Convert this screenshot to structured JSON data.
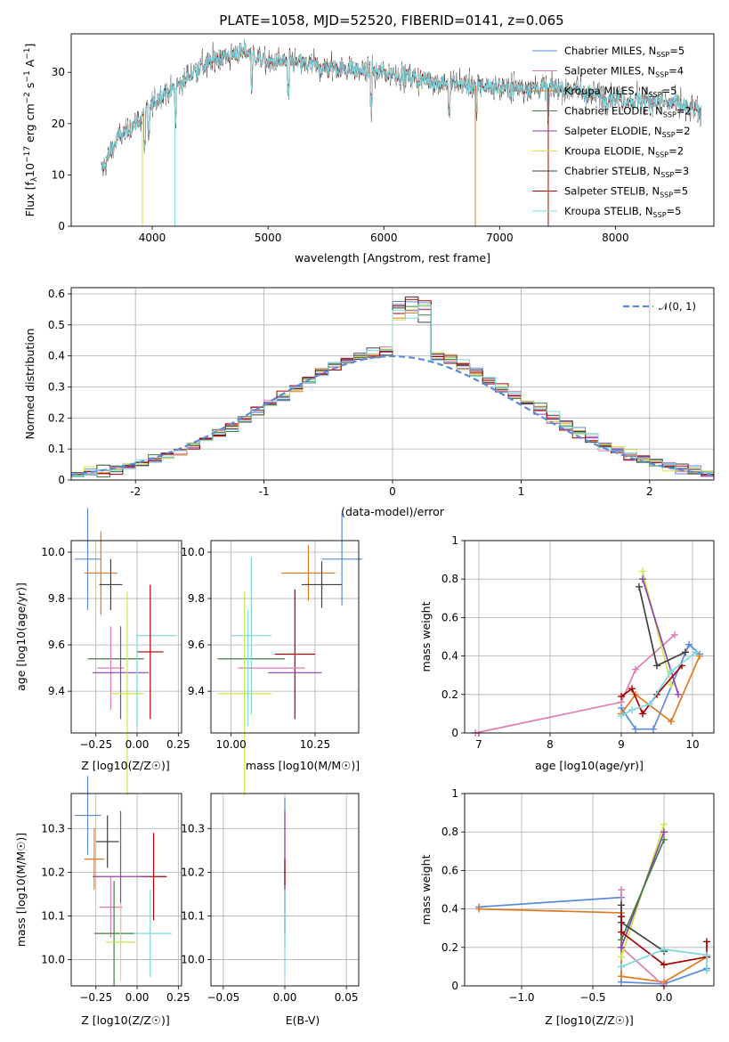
{
  "title": "PLATE=1058, MJD=52520, FIBERID=0141, z=0.065",
  "colors": {
    "Chabrier MILES": "#5b8bd8",
    "Salpeter MILES": "#e07bb4",
    "Kroupa MILES": "#e07a20",
    "Chabrier ELODIE": "#3f7f3f",
    "Salpeter ELODIE": "#9040b0",
    "Kroupa ELODIE": "#cce64d",
    "Chabrier STELIB": "#404040",
    "Salpeter STELIB": "#aa0000",
    "Kroupa STELIB": "#7ad8de"
  },
  "legend": [
    {
      "name": "Chabrier MILES",
      "label": "Chabrier MILES, N",
      "n": "5"
    },
    {
      "name": "Salpeter MILES",
      "label": "Salpeter MILES, N",
      "n": "4"
    },
    {
      "name": "Kroupa MILES",
      "label": "Kroupa MILES, N",
      "n": "5"
    },
    {
      "name": "Chabrier ELODIE",
      "label": "Chabrier ELODIE, N",
      "n": "2"
    },
    {
      "name": "Salpeter ELODIE",
      "label": "Salpeter ELODIE, N",
      "n": "2"
    },
    {
      "name": "Kroupa ELODIE",
      "label": "Kroupa ELODIE, N",
      "n": "2"
    },
    {
      "name": "Chabrier STELIB",
      "label": "Chabrier STELIB, N",
      "n": "3"
    },
    {
      "name": "Salpeter STELIB",
      "label": "Salpeter STELIB, N",
      "n": "5"
    },
    {
      "name": "Kroupa STELIB",
      "label": "Kroupa STELIB, N",
      "n": "5"
    }
  ],
  "legend_sub": "SSP",
  "chart_data": [
    {
      "id": "spectrum",
      "type": "line",
      "xlabel": "wavelength [Angstrom, rest frame]",
      "ylabel": "Flux [f_λ 10^-17 erg cm^-2 s^-1 A^-1]",
      "xlim": [
        3300,
        8850
      ],
      "ylim": [
        0,
        37.5
      ],
      "xticks": [
        4000,
        5000,
        6000,
        7000,
        8000
      ],
      "yticks": [
        0,
        10,
        20,
        30
      ],
      "continuum": [
        [
          3560,
          11
        ],
        [
          3700,
          17
        ],
        [
          3800,
          19
        ],
        [
          3900,
          21
        ],
        [
          4000,
          24
        ],
        [
          4100,
          26
        ],
        [
          4200,
          27
        ],
        [
          4400,
          31
        ],
        [
          4600,
          33
        ],
        [
          4800,
          34
        ],
        [
          5000,
          32
        ],
        [
          5200,
          32
        ],
        [
          5500,
          31
        ],
        [
          6000,
          30
        ],
        [
          6500,
          28
        ],
        [
          7000,
          27
        ],
        [
          7500,
          27
        ],
        [
          8000,
          25
        ],
        [
          8500,
          24
        ],
        [
          8740,
          22
        ]
      ],
      "dips": [
        3935,
        3970,
        4200,
        4860,
        5175,
        5890,
        6563,
        6800,
        7420
      ]
    },
    {
      "id": "residuals",
      "type": "histogram",
      "xlabel": "(data-model)/error",
      "ylabel": "Normed distribution",
      "xlim": [
        -2.5,
        2.5
      ],
      "ylim": [
        0,
        0.62
      ],
      "xticks": [
        -2,
        -1,
        0,
        1,
        2
      ],
      "yticks": [
        0,
        0.1,
        0.2,
        0.3,
        0.4,
        0.5,
        0.6
      ],
      "reference": "N(0,1)",
      "bin_width": 0.1
    },
    {
      "id": "age-vs-Z",
      "type": "scatter",
      "xlabel": "Z [log10(Z/Z☉)]",
      "ylabel": "age [log10(age/yr)]",
      "xlim": [
        -0.4,
        0.27
      ],
      "ylim": [
        9.22,
        10.05
      ],
      "xticks": [
        -0.25,
        0,
        0.25
      ],
      "xticklabels": [
        "−0.25",
        "0.00",
        "0.25"
      ],
      "yticks": [
        9.4,
        9.6,
        9.8,
        10.0
      ],
      "yticklabels": [
        "9.4",
        "9.6",
        "9.8",
        "10.0"
      ],
      "points": [
        {
          "series": "Chabrier MILES",
          "x": -0.3,
          "y": 9.97,
          "xerr": 0.08,
          "yerr": 0.22
        },
        {
          "series": "Kroupa MILES",
          "x": -0.22,
          "y": 9.91,
          "xerr": 0.1,
          "yerr": 0.18
        },
        {
          "series": "Chabrier STELIB",
          "x": -0.16,
          "y": 9.86,
          "xerr": 0.07,
          "yerr": 0.11
        },
        {
          "series": "Chabrier ELODIE",
          "x": -0.13,
          "y": 9.54,
          "xerr": 0.17,
          "yerr": 0.0
        },
        {
          "series": "Kroupa STELIB",
          "x": 0.12,
          "y": 9.64,
          "xerr": 0.12,
          "yerr": 0.0
        },
        {
          "series": "Salpeter STELIB",
          "x": 0.08,
          "y": 9.57,
          "xerr": 0.08,
          "yerr": 0.29
        },
        {
          "series": "Salpeter MILES",
          "x": -0.16,
          "y": 9.5,
          "xerr": 0.08,
          "yerr": 0.18
        },
        {
          "series": "Salpeter ELODIE",
          "x": -0.1,
          "y": 9.48,
          "xerr": 0.17,
          "yerr": 0.2
        },
        {
          "series": "Kroupa ELODIE",
          "x": -0.06,
          "y": 9.39,
          "xerr": 0.1,
          "yerr": 0.44
        },
        {
          "series": "Kroupa STELIB",
          "x": 0.0,
          "y": 9.45,
          "xerr": 0.0,
          "yerr": 0.2
        }
      ]
    },
    {
      "id": "age-vs-mass",
      "type": "scatter",
      "xlabel": "mass [log10(M/M☉)]",
      "ylabel": "",
      "xlim": [
        9.94,
        10.38
      ],
      "ylim": [
        9.22,
        10.05
      ],
      "xticks": [
        10.0,
        10.25
      ],
      "xticklabels": [
        "10.00",
        "10.25"
      ],
      "yticks": [
        9.4,
        9.6,
        9.8,
        10.0
      ],
      "yticklabels": [
        "9.4",
        "9.6",
        "9.8",
        "10.0"
      ],
      "points": [
        {
          "series": "Chabrier MILES",
          "x": 10.33,
          "y": 9.97,
          "xerr": 0.06,
          "yerr": 0.2
        },
        {
          "series": "Kroupa MILES",
          "x": 10.23,
          "y": 9.91,
          "xerr": 0.08,
          "yerr": 0.12
        },
        {
          "series": "Chabrier STELIB",
          "x": 10.27,
          "y": 9.86,
          "xerr": 0.06,
          "yerr": 0.1
        },
        {
          "series": "Chabrier ELODIE",
          "x": 10.06,
          "y": 9.54,
          "xerr": 0.1,
          "yerr": 0.0
        },
        {
          "series": "Kroupa STELIB",
          "x": 10.06,
          "y": 9.64,
          "xerr": 0.06,
          "yerr": 0.34
        },
        {
          "series": "Salpeter STELIB",
          "x": 10.19,
          "y": 9.56,
          "xerr": 0.06,
          "yerr": 0.28
        },
        {
          "series": "Salpeter MILES",
          "x": 10.12,
          "y": 9.5,
          "xerr": 0.1,
          "yerr": 0.0
        },
        {
          "series": "Salpeter ELODIE",
          "x": 10.19,
          "y": 9.48,
          "xerr": 0.08,
          "yerr": 0.0
        },
        {
          "series": "Kroupa ELODIE",
          "x": 10.04,
          "y": 9.39,
          "xerr": 0.08,
          "yerr": 0.44
        },
        {
          "series": "Kroupa STELIB",
          "x": 10.05,
          "y": 9.5,
          "xerr": 0.0,
          "yerr": 0.25
        }
      ]
    },
    {
      "id": "weight-vs-age",
      "type": "line",
      "xlabel": "age [log10(age/yr)]",
      "ylabel": "mass weight",
      "xlim": [
        6.8,
        10.3
      ],
      "ylim": [
        0,
        1.0
      ],
      "xticks": [
        7,
        8,
        9,
        10
      ],
      "yticks": [
        0,
        0.2,
        0.4,
        0.6,
        0.8,
        1.0
      ],
      "series": [
        {
          "name": "Salpeter MILES",
          "x": [
            6.95,
            9.0,
            9.2,
            9.75
          ],
          "y": [
            0.0,
            0.16,
            0.33,
            0.51
          ]
        },
        {
          "name": "Chabrier MILES",
          "x": [
            9.0,
            9.2,
            9.45,
            9.95,
            10.1
          ],
          "y": [
            0.13,
            0.02,
            0.02,
            0.46,
            0.41
          ]
        },
        {
          "name": "Kroupa MILES",
          "x": [
            9.0,
            9.2,
            9.7,
            10.1
          ],
          "y": [
            0.1,
            0.2,
            0.06,
            0.4
          ]
        },
        {
          "name": "Kroupa ELODIE",
          "x": [
            9.3,
            9.7
          ],
          "y": [
            0.84,
            0.25
          ]
        },
        {
          "name": "Salpeter ELODIE",
          "x": [
            9.3,
            9.8
          ],
          "y": [
            0.8,
            0.2
          ]
        },
        {
          "name": "Chabrier STELIB",
          "x": [
            9.25,
            9.5,
            9.9
          ],
          "y": [
            0.76,
            0.35,
            0.42
          ]
        },
        {
          "name": "Salpeter STELIB",
          "x": [
            9.0,
            9.15,
            9.3,
            9.5,
            9.85
          ],
          "y": [
            0.19,
            0.23,
            0.1,
            0.2,
            0.35
          ]
        },
        {
          "name": "Kroupa STELIB",
          "x": [
            9.0,
            9.15,
            9.4,
            9.7,
            10.05
          ],
          "y": [
            0.09,
            0.12,
            0.15,
            0.32,
            0.42
          ]
        }
      ]
    },
    {
      "id": "mass-vs-Z",
      "type": "scatter",
      "xlabel": "Z [log10(Z/Z☉)]",
      "ylabel": "mass [log10(M/M☉)]",
      "xlim": [
        -0.4,
        0.27
      ],
      "ylim": [
        9.94,
        10.38
      ],
      "xticks": [
        -0.25,
        0,
        0.25
      ],
      "xticklabels": [
        "−0.25",
        "0.00",
        "0.25"
      ],
      "yticks": [
        10.0,
        10.1,
        10.2,
        10.3
      ],
      "yticklabels": [
        "10.0",
        "10.1",
        "10.2",
        "10.3"
      ],
      "points": [
        {
          "series": "Chabrier MILES",
          "x": -0.3,
          "y": 10.33,
          "xerr": 0.08,
          "yerr": 0.09
        },
        {
          "series": "Chabrier STELIB",
          "x": -0.18,
          "y": 10.27,
          "xerr": 0.07,
          "yerr": 0.06
        },
        {
          "series": "Kroupa MILES",
          "x": -0.26,
          "y": 10.23,
          "xerr": 0.06,
          "yerr": 0.07
        },
        {
          "series": "Salpeter MILES",
          "x": -0.16,
          "y": 10.12,
          "xerr": 0.07,
          "yerr": 0.07
        },
        {
          "series": "Salpeter STELIB",
          "x": 0.1,
          "y": 10.19,
          "xerr": 0.08,
          "yerr": 0.1
        },
        {
          "series": "Salpeter ELODIE",
          "x": -0.1,
          "y": 10.19,
          "xerr": 0.17,
          "yerr": 0.15
        },
        {
          "series": "Kroupa STELIB",
          "x": 0.08,
          "y": 10.06,
          "xerr": 0.13,
          "yerr": 0.1
        },
        {
          "series": "Chabrier ELODIE",
          "x": -0.14,
          "y": 10.06,
          "xerr": 0.12,
          "yerr": 0.12
        },
        {
          "series": "Kroupa ELODIE",
          "x": -0.1,
          "y": 10.04,
          "xerr": 0.09,
          "yerr": 0.09
        }
      ]
    },
    {
      "id": "mass-vs-ebv",
      "type": "scatter",
      "xlabel": "E(B-V)",
      "ylabel": "",
      "xlim": [
        -0.06,
        0.06
      ],
      "ylim": [
        9.94,
        10.38
      ],
      "xticks": [
        -0.05,
        0,
        0.05
      ],
      "xticklabels": [
        "−0.05",
        "0.00",
        "0.05"
      ],
      "yticks": [
        10.0,
        10.1,
        10.2,
        10.3
      ],
      "yticklabels": [
        "10.0",
        "10.1",
        "10.2",
        "10.3"
      ],
      "points": [
        {
          "series": "Chabrier MILES",
          "x": 0.0,
          "y": 10.2,
          "xerr": 0,
          "yerr": 0.17
        },
        {
          "series": "Salpeter ELODIE",
          "x": 0.0,
          "y": 10.2,
          "xerr": 0,
          "yerr": 0.14
        },
        {
          "series": "Salpeter STELIB",
          "x": 0.0,
          "y": 10.2,
          "xerr": 0,
          "yerr": 0.03
        },
        {
          "series": "Kroupa STELIB",
          "x": 0.0,
          "y": 10.06,
          "xerr": 0,
          "yerr": 0.1
        }
      ]
    },
    {
      "id": "weight-vs-Z",
      "type": "line",
      "xlabel": "Z [log10(Z/Z☉)]",
      "ylabel": "mass weight",
      "xlim": [
        -1.4,
        0.35
      ],
      "ylim": [
        0,
        1.0
      ],
      "xticks": [
        -1.0,
        -0.5,
        0.0
      ],
      "xticklabels": [
        "−1.0",
        "−0.5",
        "0.0"
      ],
      "yticks": [
        0,
        0.2,
        0.4,
        0.6,
        0.8,
        1.0
      ],
      "series": [
        {
          "name": "Chabrier MILES",
          "x": [
            -1.3,
            -0.3,
            -0.3,
            0.0,
            0.3
          ],
          "y": [
            0.41,
            0.46,
            0.02,
            0.01,
            0.09
          ]
        },
        {
          "name": "Kroupa MILES",
          "x": [
            -1.3,
            -0.3,
            -0.3,
            0.0,
            0.3
          ],
          "y": [
            0.4,
            0.38,
            0.05,
            0.02,
            0.15
          ]
        },
        {
          "name": "Salpeter MILES",
          "x": [
            -0.3,
            -0.3,
            0.0
          ],
          "y": [
            0.5,
            0.2,
            0.0
          ]
        },
        {
          "name": "Kroupa ELODIE",
          "x": [
            -0.3,
            0.0
          ],
          "y": [
            0.15,
            0.84
          ]
        },
        {
          "name": "Salpeter ELODIE",
          "x": [
            -0.3,
            0.0
          ],
          "y": [
            0.2,
            0.8
          ]
        },
        {
          "name": "Chabrier ELODIE",
          "x": [
            -0.3,
            0.0
          ],
          "y": [
            0.24,
            0.76
          ]
        },
        {
          "name": "Chabrier STELIB",
          "x": [
            -0.3,
            -0.3,
            0.0
          ],
          "y": [
            0.42,
            0.33,
            0.18
          ]
        },
        {
          "name": "Salpeter STELIB",
          "x": [
            -0.3,
            -0.3,
            0.0,
            0.3,
            0.3
          ],
          "y": [
            0.36,
            0.28,
            0.11,
            0.15,
            0.23
          ]
        },
        {
          "name": "Kroupa STELIB",
          "x": [
            -0.3,
            0.0,
            0.3,
            0.3
          ],
          "y": [
            0.1,
            0.19,
            0.16,
            0.08
          ]
        }
      ]
    }
  ]
}
